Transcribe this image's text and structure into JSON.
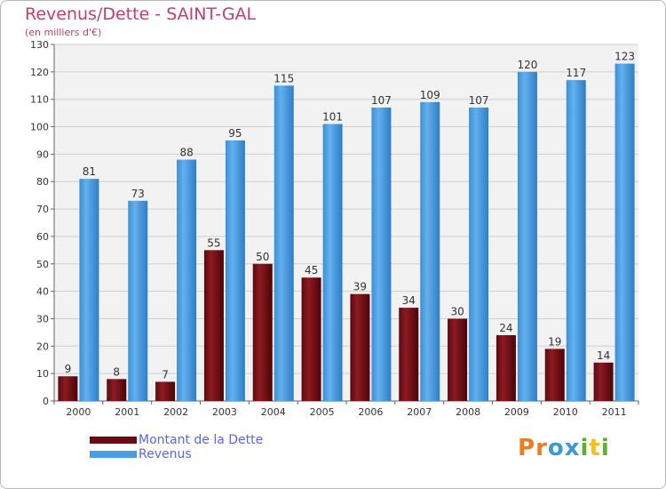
{
  "header": {
    "title": "Revenus/Dette - SAINT-GAL",
    "subtitle": "(en milliers d'€)"
  },
  "chart_data": {
    "type": "bar",
    "categories": [
      "2000",
      "2001",
      "2002",
      "2003",
      "2004",
      "2005",
      "2006",
      "2007",
      "2008",
      "2009",
      "2010",
      "2011"
    ],
    "series": [
      {
        "name": "Montant de la Dette",
        "values": [
          9,
          8,
          7,
          55,
          50,
          45,
          39,
          34,
          30,
          24,
          19,
          14
        ],
        "color": "#7a1018"
      },
      {
        "name": "Revenus",
        "values": [
          81,
          73,
          88,
          95,
          115,
          101,
          107,
          109,
          107,
          120,
          117,
          123
        ],
        "color": "#4a9ee0"
      }
    ],
    "ylim": [
      0,
      130
    ],
    "yticks": [
      0,
      10,
      20,
      30,
      40,
      50,
      60,
      70,
      80,
      90,
      100,
      110,
      120,
      130
    ],
    "grid": true,
    "legend_position": "bottom-left",
    "data_labels": true
  },
  "legend": {
    "items": [
      {
        "label": "Montant de la Dette",
        "color": "#7a1018"
      },
      {
        "label": "Revenus",
        "color": "#4a9ee0"
      }
    ]
  },
  "branding": {
    "logo_letters": [
      "P",
      "r",
      "o",
      "x",
      "i",
      "t",
      "i"
    ],
    "logo_colors": [
      "#f07b1e",
      "#f07b1e",
      "#3a9ad9",
      "#3a9ad9",
      "#5bb033",
      "#f2c018",
      "#5bb033"
    ]
  }
}
